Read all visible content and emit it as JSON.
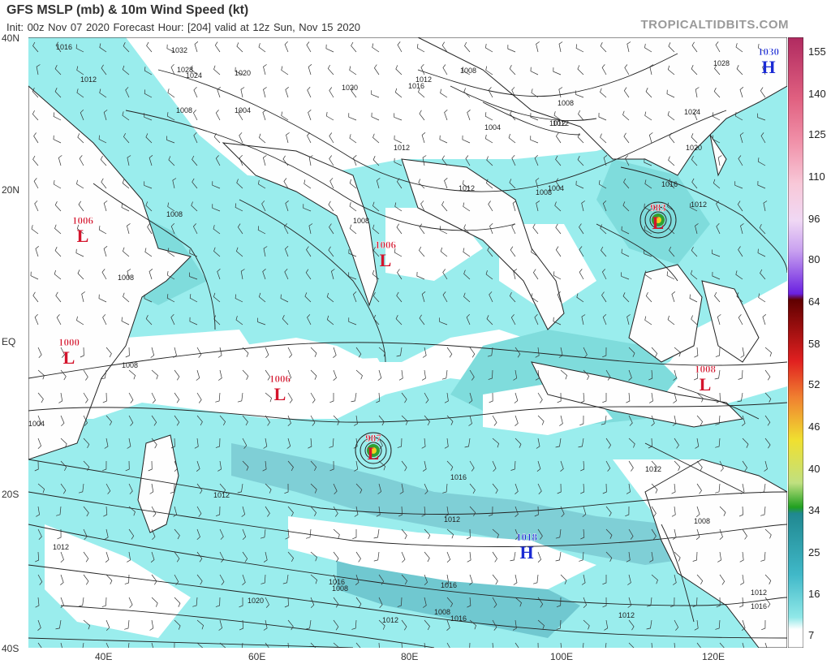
{
  "header": {
    "title": "GFS MSLP (mb) & 10m Wind Speed (kt)",
    "subtitle": "Init: 00z Nov 07 2020   Forecast Hour: [204]   valid at 12z Sun, Nov 15 2020",
    "brand": "TROPICALTIDBITS.COM"
  },
  "axes": {
    "lat_labels": [
      "40N",
      "20N",
      "EQ",
      "20S",
      "40S"
    ],
    "lon_labels": [
      "40E",
      "60E",
      "80E",
      "100E",
      "120E"
    ]
  },
  "colorbar": {
    "labels": [
      "155",
      "140",
      "125",
      "110",
      "96",
      "80",
      "64",
      "58",
      "52",
      "46",
      "40",
      "34",
      "25",
      "16",
      "7"
    ],
    "colors": {
      "magenta": "#c0306e",
      "pink": "#f5a0c0",
      "lavender": "#d0a8f0",
      "purple": "#6a1ee0",
      "darkred": "#600000",
      "red": "#e02020",
      "orange": "#f08020",
      "yellow": "#f0e020",
      "green": "#20a020",
      "teal": "#208890",
      "cyan": "#80e8e8"
    }
  },
  "pressure_systems": [
    {
      "type": "L",
      "value": "1006",
      "color": "#d4142c"
    },
    {
      "type": "L",
      "value": "1006",
      "color": "#d4142c"
    },
    {
      "type": "L",
      "value": "1006",
      "color": "#d4142c"
    },
    {
      "type": "L",
      "value": "1000",
      "color": "#d4142c"
    },
    {
      "type": "L",
      "value": "987",
      "color": "#d4142c"
    },
    {
      "type": "L",
      "value": "983",
      "color": "#d4142c"
    },
    {
      "type": "L",
      "value": "1008",
      "color": "#d4142c"
    },
    {
      "type": "H",
      "value": "1018",
      "color": "#1a2ad4"
    },
    {
      "type": "H",
      "value": "1030",
      "color": "#1a2ad4"
    }
  ],
  "isobar_labels": [
    "1016",
    "1032",
    "1028",
    "1024",
    "1020",
    "1012",
    "1008",
    "1004",
    "1020",
    "1016",
    "1008",
    "1012",
    "1004",
    "1012",
    "1008",
    "1012",
    "1024",
    "1028",
    "1020",
    "1012",
    "1016",
    "1012",
    "1008",
    "1004",
    "1012",
    "1008",
    "1008",
    "1008",
    "1008",
    "1004",
    "1012",
    "1012",
    "1016",
    "1012",
    "1008",
    "1012",
    "1016",
    "1020",
    "1016",
    "1012",
    "1008",
    "1016",
    "1012",
    "1008",
    "1012",
    "1016"
  ]
}
